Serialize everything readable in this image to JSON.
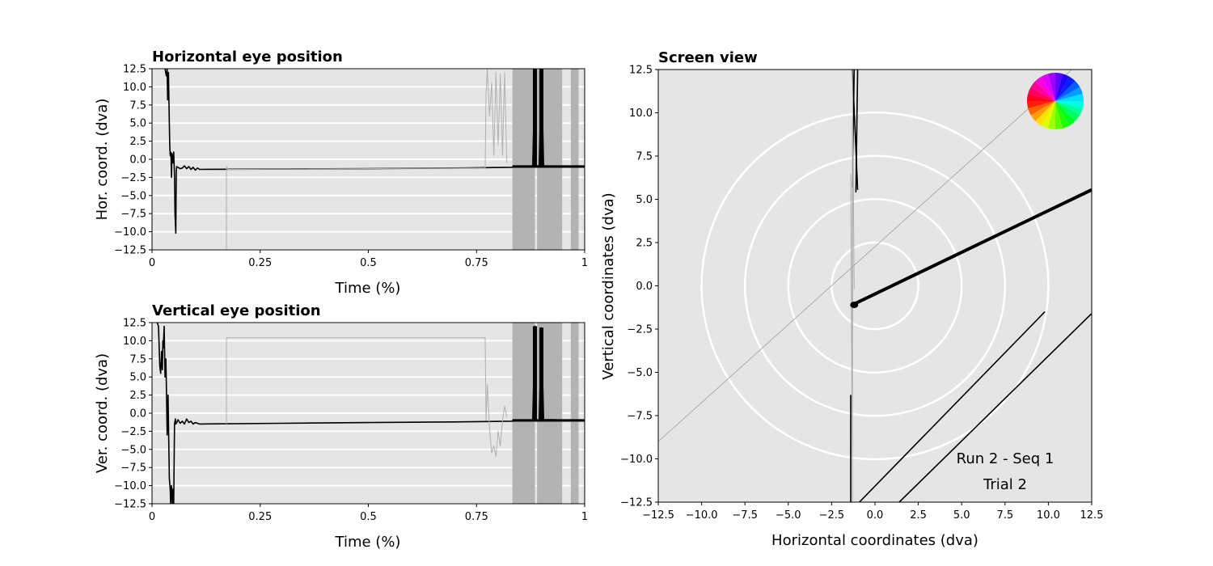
{
  "charts": {
    "horizontal": {
      "title": "Horizontal eye position",
      "xlabel": "Time (%)",
      "ylabel": "Hor. coord. (dva)"
    },
    "vertical": {
      "title": "Vertical eye position",
      "xlabel": "Time (%)",
      "ylabel": "Ver. coord. (dva)"
    },
    "screen": {
      "title": "Screen view",
      "xlabel": "Horizontal coordinates (dva)",
      "ylabel": "Vertical coordinates (dva)",
      "annotation_run": "Run 2 - Seq 1",
      "annotation_trial": "Trial 2"
    }
  },
  "chart_data": [
    {
      "type": "line",
      "title": "Horizontal eye position",
      "xlabel": "Time (%)",
      "ylabel": "Hor. coord. (dva)",
      "xlim": [
        0,
        1
      ],
      "ylim": [
        -12.5,
        12.5
      ],
      "x_ticks": [
        "0",
        "0.25",
        "0.5",
        "0.75",
        "1"
      ],
      "y_ticks": [
        "12.5",
        "10.0",
        "7.5",
        "5.0",
        "2.5",
        "0.0",
        "−2.5",
        "−5.0",
        "−7.5",
        "−10.0",
        "−12.5"
      ],
      "shaded_intervals": [
        [
          0.833,
          0.885
        ],
        [
          0.89,
          0.948
        ],
        [
          0.968,
          0.986
        ]
      ],
      "series": [
        {
          "style": "primary",
          "x": [
            0.03,
            0.033,
            0.035,
            0.036,
            0.038,
            0.04,
            0.041,
            0.042,
            0.043,
            0.044,
            0.045,
            0.046,
            0.048,
            0.05,
            0.052,
            0.053,
            0.055,
            0.056,
            0.057,
            0.06,
            0.065,
            0.07,
            0.075,
            0.08,
            0.085,
            0.09,
            0.095,
            0.1,
            0.105,
            0.11,
            0.3,
            0.5,
            0.7,
            0.83,
            0.86,
            0.88,
            0.885,
            0.887,
            0.895,
            0.9,
            0.905,
            0.93,
            0.95,
            0.97,
            1.0
          ],
          "y": [
            12.5,
            11.5,
            12.5,
            8.2,
            12.0,
            5.0,
            2.0,
            0.5,
            1.0,
            0.3,
            -2.5,
            0.8,
            -0.5,
            1.0,
            -2.3,
            -7.5,
            -10.2,
            -1.6,
            -1.0,
            -1.1,
            -1.3,
            -1.2,
            -0.9,
            -1.3,
            -1.0,
            -1.4,
            -1.1,
            -1.5,
            -1.2,
            -1.4,
            -1.35,
            -1.3,
            -1.2,
            -1.1,
            -1.0,
            -0.9,
            12.5,
            -0.9,
            -1.0,
            12.5,
            -0.9,
            -1.0,
            -1.0,
            -1.0,
            -1.0
          ]
        },
        {
          "style": "faint",
          "x": [
            0.172,
            0.172,
            0.175,
            0.77,
            0.772,
            0.775,
            0.78,
            0.785,
            0.79,
            0.795,
            0.8,
            0.805,
            0.81,
            0.815,
            0.82
          ],
          "y": [
            -12.5,
            -1.0,
            -1.4,
            -1.2,
            9.0,
            12.5,
            6.0,
            10.5,
            0.5,
            12.0,
            2.0,
            11.8,
            0.5,
            12.0,
            -0.5
          ]
        }
      ]
    },
    {
      "type": "line",
      "title": "Vertical eye position",
      "xlabel": "Time (%)",
      "ylabel": "Ver. coord. (dva)",
      "xlim": [
        0,
        1
      ],
      "ylim": [
        -12.5,
        12.5
      ],
      "x_ticks": [
        "0",
        "0.25",
        "0.5",
        "0.75",
        "1"
      ],
      "y_ticks": [
        "12.5",
        "10.0",
        "7.5",
        "5.0",
        "2.5",
        "0.0",
        "−2.5",
        "−5.0",
        "−7.5",
        "−10.0",
        "−12.5"
      ],
      "shaded_intervals": [
        [
          0.833,
          0.885
        ],
        [
          0.89,
          0.948
        ],
        [
          0.968,
          0.986
        ]
      ],
      "series": [
        {
          "style": "primary",
          "x": [
            0.012,
            0.015,
            0.018,
            0.02,
            0.022,
            0.024,
            0.025,
            0.026,
            0.028,
            0.03,
            0.032,
            0.033,
            0.035,
            0.037,
            0.038,
            0.04,
            0.042,
            0.043,
            0.045,
            0.047,
            0.048,
            0.05,
            0.052,
            0.054,
            0.055,
            0.058,
            0.06,
            0.065,
            0.07,
            0.075,
            0.08,
            0.085,
            0.09,
            0.095,
            0.1,
            0.11,
            0.3,
            0.5,
            0.7,
            0.83,
            0.86,
            0.88,
            0.885,
            0.887,
            0.895,
            0.9,
            0.905,
            0.93,
            0.95,
            0.97,
            1.0
          ],
          "y": [
            12.5,
            12.0,
            6.5,
            5.5,
            8.5,
            6.0,
            10.0,
            9.0,
            12.0,
            5.0,
            7.5,
            4.0,
            -3.0,
            2.5,
            -1.0,
            -9.0,
            -10.5,
            -12.5,
            -10.0,
            -12.5,
            -10.5,
            -12.5,
            -1.5,
            -0.8,
            -1.5,
            -1.2,
            -0.9,
            -1.4,
            -1.1,
            -1.5,
            -0.8,
            -1.3,
            -1.1,
            -1.5,
            -1.3,
            -1.5,
            -1.4,
            -1.3,
            -1.2,
            -1.1,
            -1.0,
            -0.9,
            12.0,
            -1.0,
            -1.0,
            11.8,
            -0.9,
            -0.9,
            -1.0,
            -1.0,
            -1.0
          ]
        },
        {
          "style": "faint",
          "x": [
            0.172,
            0.172,
            0.175,
            0.77,
            0.772,
            0.775,
            0.78,
            0.785,
            0.79,
            0.795,
            0.8,
            0.805,
            0.81,
            0.815,
            0.82
          ],
          "y": [
            -1.5,
            10.4,
            10.4,
            10.4,
            -1.0,
            4.0,
            -2.0,
            -5.5,
            -4.5,
            -6.0,
            -2.5,
            -4.5,
            -1.0,
            1.0,
            -0.5
          ]
        }
      ]
    },
    {
      "type": "line",
      "title": "Screen view",
      "xlabel": "Horizontal coordinates (dva)",
      "ylabel": "Vertical coordinates (dva)",
      "xlim": [
        -12.5,
        12.5
      ],
      "ylim": [
        -12.5,
        12.5
      ],
      "x_ticks": [
        "−12.5",
        "−10.0",
        "−7.5",
        "−5.0",
        "−2.5",
        "0.0",
        "2.5",
        "5.0",
        "7.5",
        "10.0",
        "12.5"
      ],
      "y_ticks": [
        "12.5",
        "10.0",
        "7.5",
        "5.0",
        "2.5",
        "0.0",
        "−2.5",
        "−5.0",
        "−7.5",
        "−10.0",
        "−12.5"
      ],
      "grid": "concentric circles",
      "circle_radii": [
        2.5,
        5.0,
        7.5,
        10.0
      ],
      "legend": "color wheel, top-right",
      "annotations": [
        "Run 2 - Seq 1",
        "Trial 2"
      ],
      "series": [
        {
          "style": "primary",
          "segments": [
            [
              [
                -1.2,
                -1.3
              ],
              [
                12.5,
                5.7
              ]
            ],
            [
              [
                -1.0,
                -1.1
              ],
              [
                12.5,
                5.4
              ]
            ],
            [
              [
                -1.3,
                -1.0
              ],
              [
                12.5,
                5.55
              ]
            ],
            [
              [
                -1.4,
                -1.4
              ],
              [
                -6.3,
                -12.5
              ]
            ],
            [
              [
                9.8,
                -0.9
              ],
              [
                -1.5,
                -12.5
              ]
            ],
            [
              [
                12.5,
                1.4
              ],
              [
                -1.6,
                -12.5
              ]
            ]
          ]
        },
        {
          "style": "faint",
          "segments": [
            [
              [
                -1.3,
                -1.4
              ],
              [
                -12.5,
                6.5
              ]
            ],
            [
              [
                -1.3,
                -1.3
              ],
              [
                -12.5,
                7.7
              ]
            ],
            [
              [
                -1.3,
                -1.3
              ],
              [
                8.9,
                -2.5
              ]
            ],
            [
              [
                -1.3,
                -1.3
              ],
              [
                9.2,
                -2.6
              ]
            ],
            [
              [
                -1.3,
                -1.3
              ],
              [
                9.7,
                -1.6
              ]
            ],
            [
              [
                -1.3,
                -1.2
              ],
              [
                12.5,
                -0.2
              ]
            ],
            [
              [
                -1.3,
                -1.3
              ],
              [
                6.5,
                -4.5
              ]
            ],
            [
              [
                -1.3,
                -1.3
              ],
              [
                4.8,
                -6.2
              ]
            ],
            [
              [
                -12.5,
                11.2
              ],
              [
                12.5,
                12.9
              ]
            ],
            [
              [
                -12.5,
                11.8
              ],
              [
                -9.0,
                12.9
              ]
            ]
          ]
        }
      ]
    }
  ]
}
